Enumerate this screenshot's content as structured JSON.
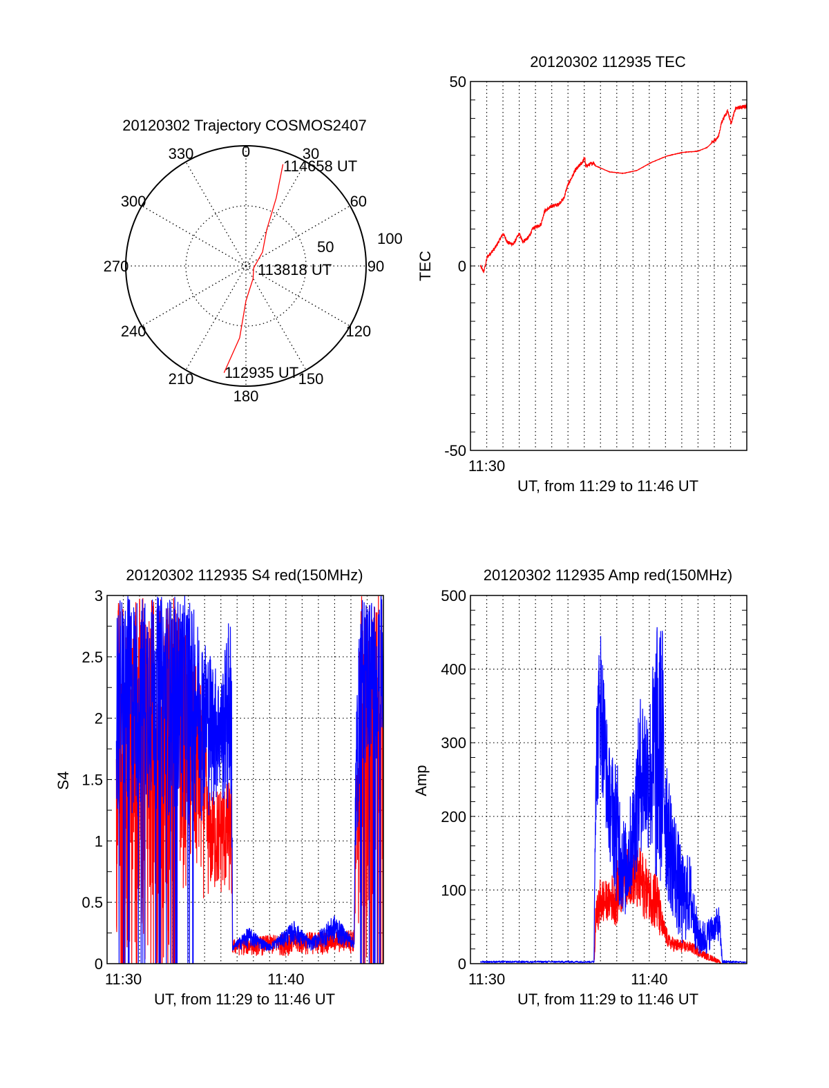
{
  "colors": {
    "red": "#ff0000",
    "blue": "#0000ff",
    "axis": "#000000"
  },
  "chart_data": [
    {
      "type": "polar",
      "title": "20120302 Trajectory COSMOS2407",
      "angle_labels": [
        "0",
        "30",
        "60",
        "90",
        "120",
        "150",
        "180",
        "210",
        "240",
        "270",
        "300",
        "330"
      ],
      "radial_labels": [
        "50",
        "100"
      ],
      "rlim": [
        0,
        100
      ],
      "grid": true,
      "series": [
        {
          "name": "trajectory",
          "color": "red",
          "points_az_r": [
            [
              191.6,
              90.7
            ],
            [
              185,
              60
            ],
            [
              180,
              29
            ],
            [
              150,
              12
            ],
            [
              105,
              6.6
            ],
            [
              50,
              18
            ],
            [
              29.7,
              35
            ],
            [
              24,
              62
            ],
            [
              20,
              90
            ]
          ]
        }
      ],
      "annotations": [
        {
          "text": "114658 UT",
          "az": 20,
          "r": 90
        },
        {
          "text": "113818 UT",
          "az": 105,
          "r": 6.6
        },
        {
          "text": "112935 UT",
          "az": 191.6,
          "r": 90.7
        }
      ]
    },
    {
      "type": "line",
      "title": "20120302 112935 TEC",
      "xlabel": "UT, from 11:29 to 11:46 UT",
      "ylabel": "TEC",
      "x_units": "minutes after 11:30",
      "xlim": [
        -1,
        16
      ],
      "ylim": [
        -50,
        50
      ],
      "xticks": [
        {
          "value": 0,
          "label": "11:30"
        }
      ],
      "yticks": [
        {
          "value": 50,
          "label": "50"
        },
        {
          "value": 0,
          "label": "0"
        },
        {
          "value": -50,
          "label": "-50"
        }
      ],
      "grid": true,
      "series": [
        {
          "name": "TEC",
          "color": "red",
          "noise": 0.5,
          "points": [
            [
              -0.39,
              0
            ],
            [
              -0.18,
              -1.6
            ],
            [
              0.03,
              2.4
            ],
            [
              0.52,
              4.9
            ],
            [
              1.01,
              8.8
            ],
            [
              1.3,
              6.3
            ],
            [
              1.65,
              5.9
            ],
            [
              2.0,
              8.8
            ],
            [
              2.21,
              6.6
            ],
            [
              2.56,
              7.7
            ],
            [
              2.85,
              10.2
            ],
            [
              3.34,
              11.3
            ],
            [
              3.55,
              14.8
            ],
            [
              4.04,
              16.3
            ],
            [
              4.39,
              16.6
            ],
            [
              4.75,
              18.4
            ],
            [
              4.96,
              21.6
            ],
            [
              5.45,
              25.9
            ],
            [
              5.9,
              28.2
            ],
            [
              6.04,
              29.5
            ],
            [
              6.08,
              27.0
            ],
            [
              6.58,
              28.0
            ],
            [
              6.72,
              27.1
            ],
            [
              7.56,
              25.5
            ],
            [
              8.41,
              25.1
            ],
            [
              9.25,
              25.9
            ],
            [
              10.1,
              28.0
            ],
            [
              11.08,
              29.8
            ],
            [
              12.07,
              30.8
            ],
            [
              12.99,
              31.1
            ],
            [
              13.55,
              32.1
            ],
            [
              14.25,
              35.0
            ],
            [
              14.46,
              39.1
            ],
            [
              14.82,
              42.1
            ],
            [
              15.03,
              38.7
            ],
            [
              15.31,
              42.7
            ],
            [
              16.0,
              43.4
            ]
          ]
        }
      ]
    },
    {
      "type": "line",
      "title": "20120302 112935 S4 red(150MHz)",
      "xlabel": "UT, from 11:29 to 11:46 UT",
      "ylabel": "S4",
      "x_units": "minutes after 11:30",
      "xlim": [
        -1,
        16
      ],
      "ylim": [
        0,
        3
      ],
      "xticks": [
        {
          "value": 0,
          "label": "11:30"
        },
        {
          "value": 10,
          "label": "11:40"
        }
      ],
      "yticks": [
        {
          "value": 0,
          "label": "0"
        },
        {
          "value": 0.5,
          "label": "0.5"
        },
        {
          "value": 1,
          "label": "1"
        },
        {
          "value": 1.5,
          "label": "1.5"
        },
        {
          "value": 2,
          "label": "2"
        },
        {
          "value": 2.5,
          "label": "2.5"
        },
        {
          "value": 3,
          "label": "3"
        }
      ],
      "grid": true,
      "series": [
        {
          "name": "red",
          "color": "red",
          "envelope_t_lo_hi": [
            [
              -0.43,
              0,
              3
            ],
            [
              3,
              0,
              3
            ],
            [
              3.1,
              0.6,
              3
            ],
            [
              5,
              0.5,
              2.2
            ],
            [
              5.2,
              0.5,
              1.4
            ],
            [
              6.65,
              0.5,
              1.5
            ],
            [
              6.72,
              0.06,
              0.2
            ],
            [
              10,
              0.06,
              0.25
            ],
            [
              14.2,
              0.08,
              0.28
            ],
            [
              14.3,
              0.3,
              1.2
            ],
            [
              14.6,
              0,
              3
            ],
            [
              16,
              0,
              3
            ]
          ]
        },
        {
          "name": "blue",
          "color": "blue",
          "envelope_t_lo_hi": [
            [
              -0.43,
              1.0,
              3
            ],
            [
              2,
              1.2,
              3
            ],
            [
              4,
              1.1,
              3
            ],
            [
              5.5,
              1.2,
              2.5
            ],
            [
              6,
              1.3,
              2.3
            ],
            [
              6.65,
              1.0,
              3
            ],
            [
              6.72,
              0.1,
              0.15
            ],
            [
              7.7,
              0.12,
              0.3
            ],
            [
              9,
              0.1,
              0.16
            ],
            [
              10.5,
              0.15,
              0.35
            ],
            [
              11.5,
              0.1,
              0.2
            ],
            [
              13,
              0.15,
              0.4
            ],
            [
              14.2,
              0.12,
              0.2
            ],
            [
              14.3,
              0.6,
              2.0
            ],
            [
              14.6,
              1.5,
              3
            ],
            [
              16,
              1.6,
              3
            ]
          ]
        }
      ]
    },
    {
      "type": "line",
      "title": "20120302 112935 Amp red(150MHz)",
      "xlabel": "UT, from 11:29 to 11:46 UT",
      "ylabel": "Amp",
      "x_units": "minutes after 11:30",
      "xlim": [
        -1,
        16
      ],
      "ylim": [
        0,
        500
      ],
      "xticks": [
        {
          "value": 0,
          "label": "11:30"
        },
        {
          "value": 10,
          "label": "11:40"
        }
      ],
      "yticks": [
        {
          "value": 0,
          "label": "0"
        },
        {
          "value": 100,
          "label": "100"
        },
        {
          "value": 200,
          "label": "200"
        },
        {
          "value": 300,
          "label": "300"
        },
        {
          "value": 400,
          "label": "400"
        },
        {
          "value": 500,
          "label": "500"
        }
      ],
      "grid": true,
      "series": [
        {
          "name": "red",
          "color": "red",
          "envelope_t_lo_hi": [
            [
              6.6,
              0,
              3
            ],
            [
              6.65,
              10,
              30
            ],
            [
              6.7,
              40,
              80
            ],
            [
              7.0,
              50,
              120
            ],
            [
              7.5,
              60,
              110
            ],
            [
              8.0,
              50,
              140
            ],
            [
              8.5,
              80,
              160
            ],
            [
              9.0,
              80,
              150
            ],
            [
              9.5,
              60,
              160
            ],
            [
              10.0,
              60,
              130
            ],
            [
              10.4,
              40,
              140
            ],
            [
              10.8,
              30,
              70
            ],
            [
              11.2,
              20,
              40
            ],
            [
              11.6,
              15,
              35
            ],
            [
              12.5,
              15,
              30
            ],
            [
              13.0,
              10,
              25
            ],
            [
              13.5,
              5,
              15
            ],
            [
              14.0,
              2,
              10
            ],
            [
              14.3,
              0,
              5
            ],
            [
              14.4,
              0,
              1
            ]
          ]
        },
        {
          "name": "blue",
          "color": "blue",
          "envelope_t_lo_hi": [
            [
              -0.4,
              1,
              4
            ],
            [
              6.6,
              1,
              4
            ],
            [
              6.7,
              180,
              350
            ],
            [
              7.0,
              250,
              470
            ],
            [
              7.5,
              150,
              300
            ],
            [
              8.0,
              80,
              280
            ],
            [
              8.5,
              60,
              190
            ],
            [
              9.0,
              100,
              250
            ],
            [
              9.5,
              150,
              380
            ],
            [
              10.0,
              150,
              360
            ],
            [
              10.4,
              100,
              460
            ],
            [
              10.8,
              100,
              470
            ],
            [
              11.2,
              80,
              250
            ],
            [
              11.6,
              50,
              210
            ],
            [
              12.0,
              20,
              150
            ],
            [
              12.5,
              40,
              150
            ],
            [
              13.0,
              10,
              60
            ],
            [
              13.5,
              10,
              60
            ],
            [
              14.0,
              30,
              70
            ],
            [
              14.3,
              30,
              80
            ],
            [
              14.5,
              0,
              5
            ],
            [
              16,
              1,
              3
            ]
          ]
        }
      ]
    }
  ]
}
